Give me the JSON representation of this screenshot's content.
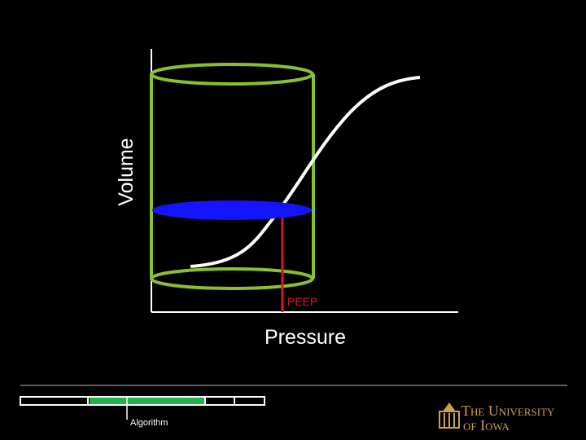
{
  "diagram": {
    "y_axis_label": "Volume",
    "x_axis_label": "Pressure",
    "marker_label": "PEEP"
  },
  "footer": {
    "section_label": "Algorithm",
    "logo": {
      "line1": "The University",
      "line2": "of Iowa"
    }
  }
}
